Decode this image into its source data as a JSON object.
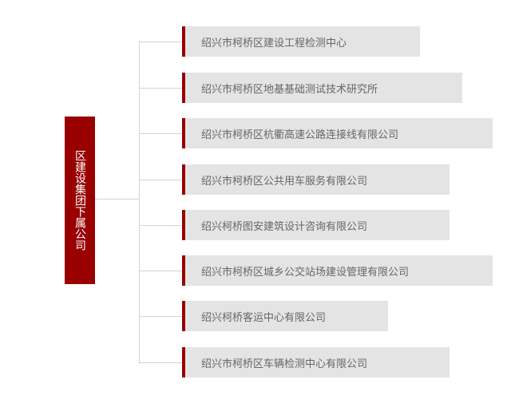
{
  "root": {
    "label": "区建设集团下属公司"
  },
  "colors": {
    "accent": "#990000",
    "box": "#e4e4e4",
    "text": "#666666",
    "line": "#d4d4d4"
  },
  "children": [
    {
      "label": "绍兴市柯桥区建设工程检测中心"
    },
    {
      "label": "绍兴市柯桥区地基基础测试技术研究所"
    },
    {
      "label": "绍兴市柯桥区杭衢高速公路连接线有限公司"
    },
    {
      "label": "绍兴市柯桥区公共用车服务有限公司"
    },
    {
      "label": "绍兴柯桥图安建筑设计咨询有限公司"
    },
    {
      "label": "绍兴市柯桥区城乡公交站场建设管理有限公司"
    },
    {
      "label": "绍兴柯桥客运中心有限公司"
    },
    {
      "label": "绍兴市柯桥区车辆检测中心有限公司"
    }
  ]
}
